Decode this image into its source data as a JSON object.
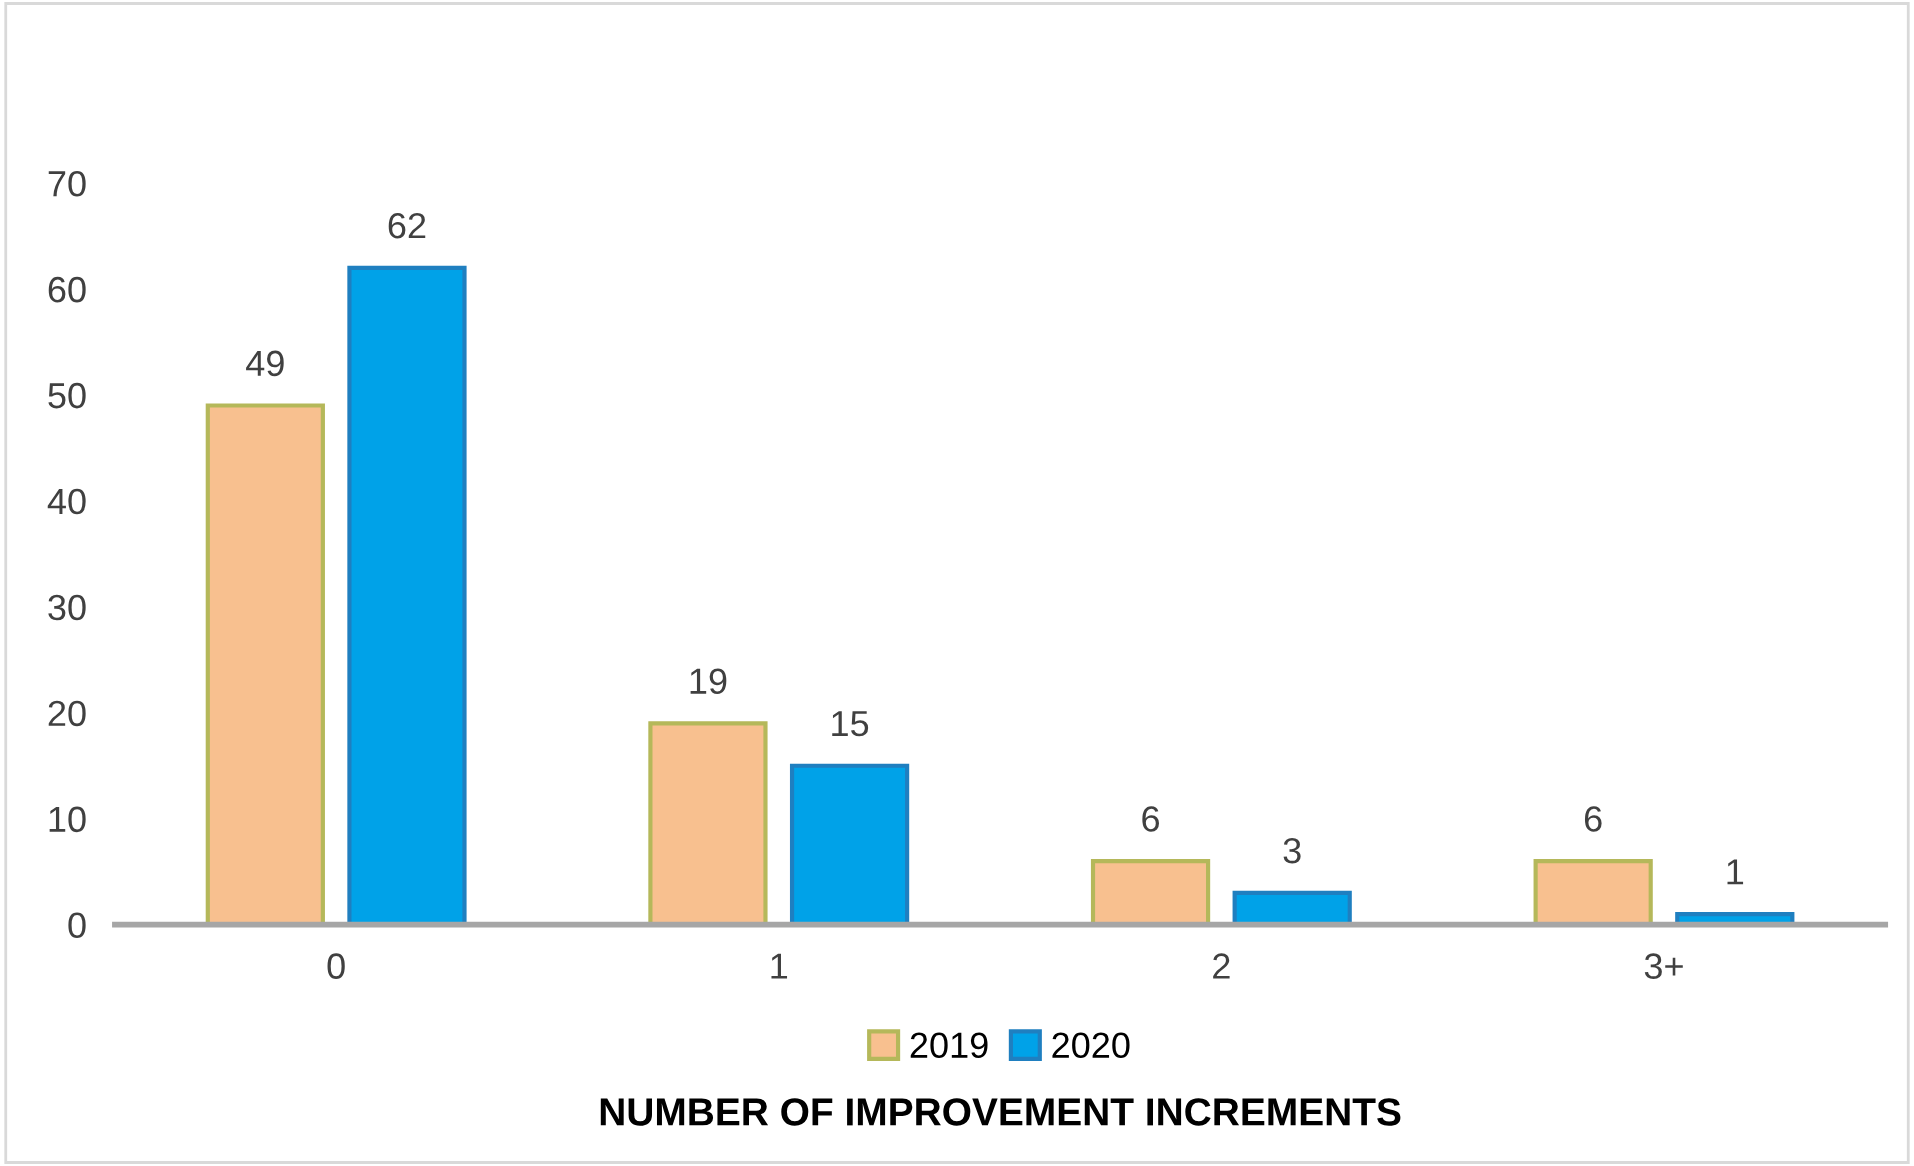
{
  "chart_data": {
    "type": "bar",
    "xlabel": "NUMBER OF IMPROVEMENT INCREMENTS",
    "categories": [
      "0",
      "1",
      "2",
      "3+"
    ],
    "series": [
      {
        "name": "2019",
        "color": "#f8c08f",
        "values": [
          49,
          19,
          6,
          6
        ]
      },
      {
        "name": "2020",
        "color": "#00a2e8",
        "values": [
          62,
          15,
          3,
          1
        ]
      }
    ],
    "ylim": [
      0,
      70
    ],
    "yticks": [
      0,
      10,
      20,
      30,
      40,
      50,
      60,
      70
    ],
    "grid": false,
    "legend": "bottom",
    "data_labels": true
  }
}
